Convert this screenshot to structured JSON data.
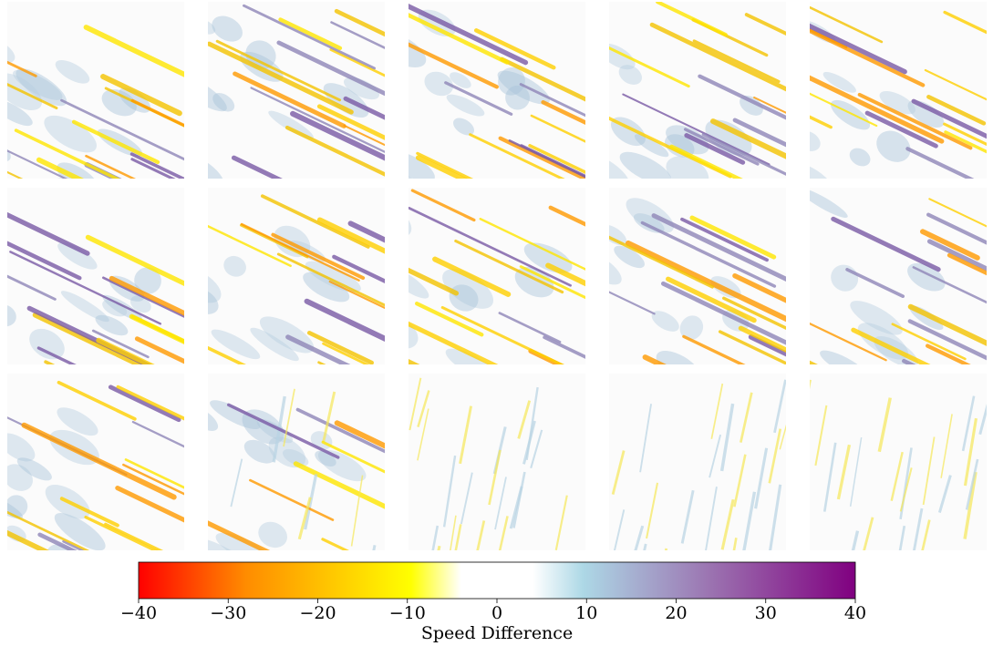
{
  "chart_data": {
    "type": "colorbar",
    "xlabel": "Speed Difference",
    "xlim": [
      -40,
      40
    ],
    "xticks": [
      {
        "value": -40,
        "label": "−40"
      },
      {
        "value": -30,
        "label": "−30"
      },
      {
        "value": -20,
        "label": "−20"
      },
      {
        "value": -10,
        "label": "−10"
      },
      0,
      10,
      20,
      30,
      40
    ],
    "colors": [
      "#ff0000",
      "#ff8c00",
      "#ffff00",
      "#ffffff",
      "#ffffff",
      "#add8e6",
      "#9b72b0",
      "#800080"
    ]
  }
}
